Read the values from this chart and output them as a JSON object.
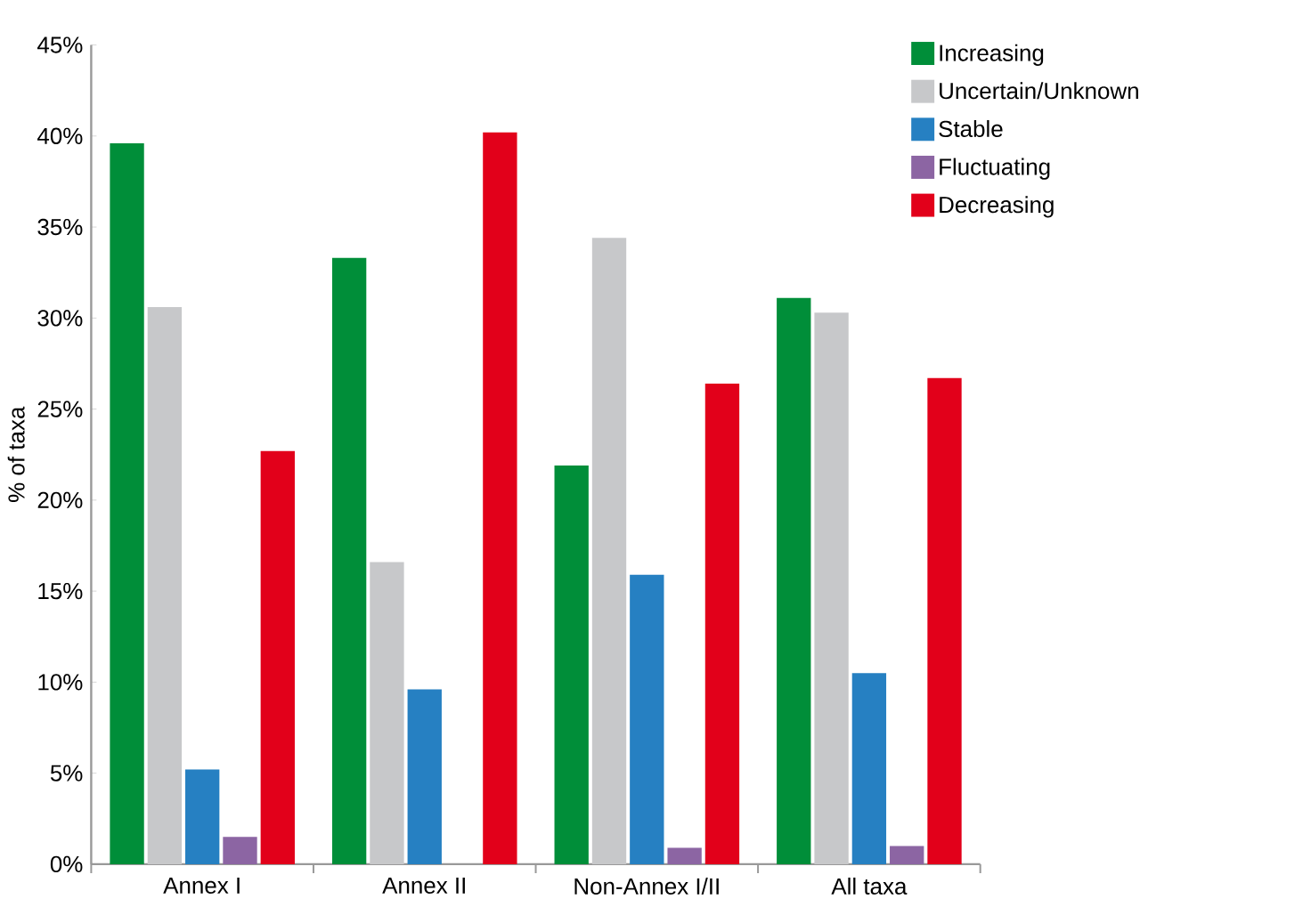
{
  "chart_data": {
    "type": "bar",
    "ylabel": "% of taxa",
    "categories": [
      "Annex I",
      "Annex II",
      "Non-Annex I/II",
      "All taxa"
    ],
    "series": [
      {
        "name": "Increasing",
        "color": "#008e39",
        "values": [
          39.6,
          33.3,
          21.9,
          31.1
        ]
      },
      {
        "name": "Uncertain/Unknown",
        "color": "#c7c8ca",
        "values": [
          30.6,
          16.6,
          34.4,
          30.3
        ]
      },
      {
        "name": "Stable",
        "color": "#2680c2",
        "values": [
          5.2,
          9.6,
          15.9,
          10.5
        ]
      },
      {
        "name": "Fluctuating",
        "color": "#8c65a3",
        "values": [
          1.5,
          0,
          0.9,
          1.0
        ]
      },
      {
        "name": "Decreasing",
        "color": "#e2001a",
        "values": [
          22.7,
          40.2,
          26.4,
          26.7
        ]
      }
    ],
    "ylim": [
      0,
      45
    ],
    "yticks": [
      {
        "value": 0,
        "label": "0%"
      },
      {
        "value": 5,
        "label": "5%"
      },
      {
        "value": 10,
        "label": "10%"
      },
      {
        "value": 15,
        "label": "15%"
      },
      {
        "value": 20,
        "label": "20%"
      },
      {
        "value": 25,
        "label": "25%"
      },
      {
        "value": 30,
        "label": "30%"
      },
      {
        "value": 35,
        "label": "35%"
      },
      {
        "value": 40,
        "label": "40%"
      },
      {
        "value": 45,
        "label": "45%"
      }
    ],
    "legend": "top right",
    "grid": false
  }
}
